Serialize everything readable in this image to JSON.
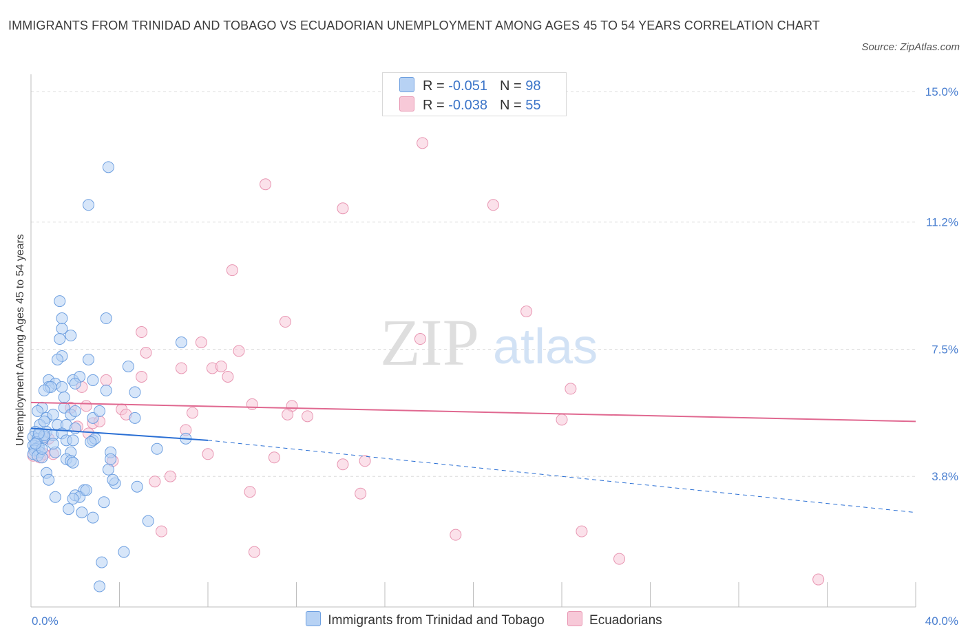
{
  "title": "IMMIGRANTS FROM TRINIDAD AND TOBAGO VS ECUADORIAN UNEMPLOYMENT AMONG AGES 45 TO 54 YEARS CORRELATION CHART",
  "source": "Source: ZipAtlas.com",
  "watermark": {
    "zip": "ZIP",
    "atlas": "atlas"
  },
  "legend_top": [
    {
      "r_label": "R =",
      "r_value": "-0.051",
      "n_label": "N =",
      "n_value": "98",
      "color": "#a9c9f2"
    },
    {
      "r_label": "R =",
      "r_value": "-0.038",
      "n_label": "N =",
      "n_value": "55",
      "color": "#f4bfd0"
    }
  ],
  "colors": {
    "blue_fill": "#b7d2f4",
    "blue_stroke": "#6d9fe0",
    "blue_line": "#2a6fd4",
    "pink_fill": "#f7c9d8",
    "pink_stroke": "#e896b2",
    "pink_line": "#e06890",
    "tick_text": "#4a7fd0"
  },
  "chart_data": {
    "type": "scatter",
    "title": "IMMIGRANTS FROM TRINIDAD AND TOBAGO VS ECUADORIAN UNEMPLOYMENT AMONG AGES 45 TO 54 YEARS CORRELATION CHART",
    "xlabel": "",
    "ylabel": "Unemployment Among Ages 45 to 54 years",
    "xlim": [
      0,
      40
    ],
    "ylim": [
      0,
      15.3
    ],
    "x_tick_labels": [
      "0.0%",
      "40.0%"
    ],
    "y_tick_labels": [
      "15.0%",
      "11.2%",
      "7.5%",
      "3.8%"
    ],
    "y_ticks": [
      15.0,
      11.2,
      7.5,
      3.8
    ],
    "grid": true,
    "legend_position": "bottom-center",
    "series": [
      {
        "name": "Immigrants from Trinidad and Tobago",
        "trend": {
          "x0": 0.0,
          "y0": 5.2,
          "x1": 8.0,
          "y1": 4.85,
          "dashed_to_x": 40.0,
          "dashed_to_y": 2.75
        },
        "points": [
          [
            3.5,
            12.8
          ],
          [
            2.6,
            11.7
          ],
          [
            1.3,
            8.9
          ],
          [
            3.4,
            8.4
          ],
          [
            1.4,
            8.4
          ],
          [
            1.4,
            8.1
          ],
          [
            1.3,
            7.8
          ],
          [
            1.8,
            7.9
          ],
          [
            6.8,
            7.7
          ],
          [
            1.4,
            7.3
          ],
          [
            1.2,
            7.2
          ],
          [
            2.6,
            7.2
          ],
          [
            4.4,
            7.0
          ],
          [
            0.8,
            6.6
          ],
          [
            1.1,
            6.5
          ],
          [
            1.9,
            6.6
          ],
          [
            2.2,
            6.7
          ],
          [
            2.8,
            6.6
          ],
          [
            0.8,
            6.4
          ],
          [
            0.9,
            6.4
          ],
          [
            0.6,
            6.3
          ],
          [
            1.4,
            6.4
          ],
          [
            2.0,
            6.5
          ],
          [
            3.4,
            6.3
          ],
          [
            4.7,
            6.25
          ],
          [
            1.5,
            6.1
          ],
          [
            0.5,
            5.8
          ],
          [
            1.5,
            5.8
          ],
          [
            0.3,
            5.7
          ],
          [
            0.7,
            5.5
          ],
          [
            1.0,
            5.6
          ],
          [
            1.8,
            5.6
          ],
          [
            2.0,
            5.7
          ],
          [
            2.8,
            5.5
          ],
          [
            3.1,
            5.7
          ],
          [
            4.7,
            5.5
          ],
          [
            0.4,
            5.3
          ],
          [
            0.6,
            5.4
          ],
          [
            1.2,
            5.3
          ],
          [
            1.6,
            5.3
          ],
          [
            2.0,
            5.2
          ],
          [
            0.2,
            5.1
          ],
          [
            0.4,
            5.05
          ],
          [
            0.7,
            5.1
          ],
          [
            1.0,
            5.0
          ],
          [
            1.4,
            5.05
          ],
          [
            0.1,
            4.95
          ],
          [
            0.3,
            4.9
          ],
          [
            0.5,
            4.85
          ],
          [
            0.6,
            4.95
          ],
          [
            0.25,
            4.8
          ],
          [
            0.1,
            4.7
          ],
          [
            0.35,
            4.65
          ],
          [
            0.2,
            4.6
          ],
          [
            0.15,
            4.55
          ],
          [
            0.4,
            4.5
          ],
          [
            0.1,
            4.45
          ],
          [
            0.3,
            4.4
          ],
          [
            0.5,
            4.35
          ],
          [
            1.6,
            4.85
          ],
          [
            1.9,
            4.85
          ],
          [
            2.8,
            4.85
          ],
          [
            2.9,
            4.9
          ],
          [
            7.0,
            4.9
          ],
          [
            5.7,
            4.6
          ],
          [
            0.5,
            4.6
          ],
          [
            1.1,
            4.5
          ],
          [
            1.8,
            4.5
          ],
          [
            3.6,
            4.5
          ],
          [
            1.6,
            4.3
          ],
          [
            1.8,
            4.25
          ],
          [
            1.9,
            4.2
          ],
          [
            3.6,
            4.3
          ],
          [
            3.5,
            4.0
          ],
          [
            0.7,
            3.9
          ],
          [
            0.8,
            3.7
          ],
          [
            3.8,
            3.6
          ],
          [
            3.7,
            3.7
          ],
          [
            4.8,
            3.5
          ],
          [
            2.4,
            3.4
          ],
          [
            1.1,
            3.2
          ],
          [
            2.0,
            3.25
          ],
          [
            2.2,
            3.2
          ],
          [
            1.9,
            3.15
          ],
          [
            2.5,
            3.4
          ],
          [
            3.3,
            3.05
          ],
          [
            1.7,
            2.85
          ],
          [
            2.3,
            2.75
          ],
          [
            2.8,
            2.6
          ],
          [
            5.3,
            2.5
          ],
          [
            4.2,
            1.6
          ],
          [
            3.2,
            1.3
          ],
          [
            3.1,
            0.6
          ],
          [
            0.2,
            4.75
          ],
          [
            0.6,
            5.0
          ],
          [
            1.0,
            4.75
          ],
          [
            2.7,
            4.8
          ],
          [
            0.35,
            5.05
          ]
        ]
      },
      {
        "name": "Ecuadorians",
        "trend": {
          "x0": 0.0,
          "y0": 5.95,
          "x1": 40.0,
          "y1": 5.4
        },
        "points": [
          [
            17.7,
            13.5
          ],
          [
            10.6,
            12.3
          ],
          [
            14.1,
            11.6
          ],
          [
            20.9,
            11.7
          ],
          [
            9.1,
            9.8
          ],
          [
            22.4,
            8.6
          ],
          [
            11.5,
            8.3
          ],
          [
            5.0,
            8.0
          ],
          [
            17.6,
            7.8
          ],
          [
            7.7,
            7.7
          ],
          [
            5.2,
            7.4
          ],
          [
            9.4,
            7.45
          ],
          [
            6.8,
            6.95
          ],
          [
            8.2,
            6.95
          ],
          [
            8.6,
            7.0
          ],
          [
            5.0,
            6.7
          ],
          [
            8.9,
            6.7
          ],
          [
            3.4,
            6.6
          ],
          [
            2.3,
            6.4
          ],
          [
            24.4,
            6.35
          ],
          [
            2.5,
            5.85
          ],
          [
            4.1,
            5.75
          ],
          [
            10.0,
            5.9
          ],
          [
            11.8,
            5.85
          ],
          [
            7.3,
            5.65
          ],
          [
            11.6,
            5.6
          ],
          [
            12.5,
            5.55
          ],
          [
            4.3,
            5.6
          ],
          [
            24.0,
            5.45
          ],
          [
            2.8,
            5.35
          ],
          [
            3.1,
            5.4
          ],
          [
            7.0,
            5.15
          ],
          [
            2.6,
            5.05
          ],
          [
            1.0,
            4.45
          ],
          [
            0.6,
            4.45
          ],
          [
            0.1,
            4.4
          ],
          [
            0.4,
            4.35
          ],
          [
            8.0,
            4.45
          ],
          [
            3.7,
            4.25
          ],
          [
            11.0,
            4.35
          ],
          [
            15.1,
            4.25
          ],
          [
            14.1,
            4.15
          ],
          [
            6.3,
            3.8
          ],
          [
            5.6,
            3.65
          ],
          [
            9.9,
            3.35
          ],
          [
            14.9,
            3.3
          ],
          [
            2.1,
            5.25
          ],
          [
            5.9,
            2.2
          ],
          [
            19.2,
            2.1
          ],
          [
            24.9,
            2.2
          ],
          [
            10.1,
            1.6
          ],
          [
            26.6,
            1.4
          ],
          [
            35.6,
            0.8
          ],
          [
            1.8,
            5.8
          ],
          [
            0.8,
            4.9
          ]
        ]
      }
    ]
  }
}
